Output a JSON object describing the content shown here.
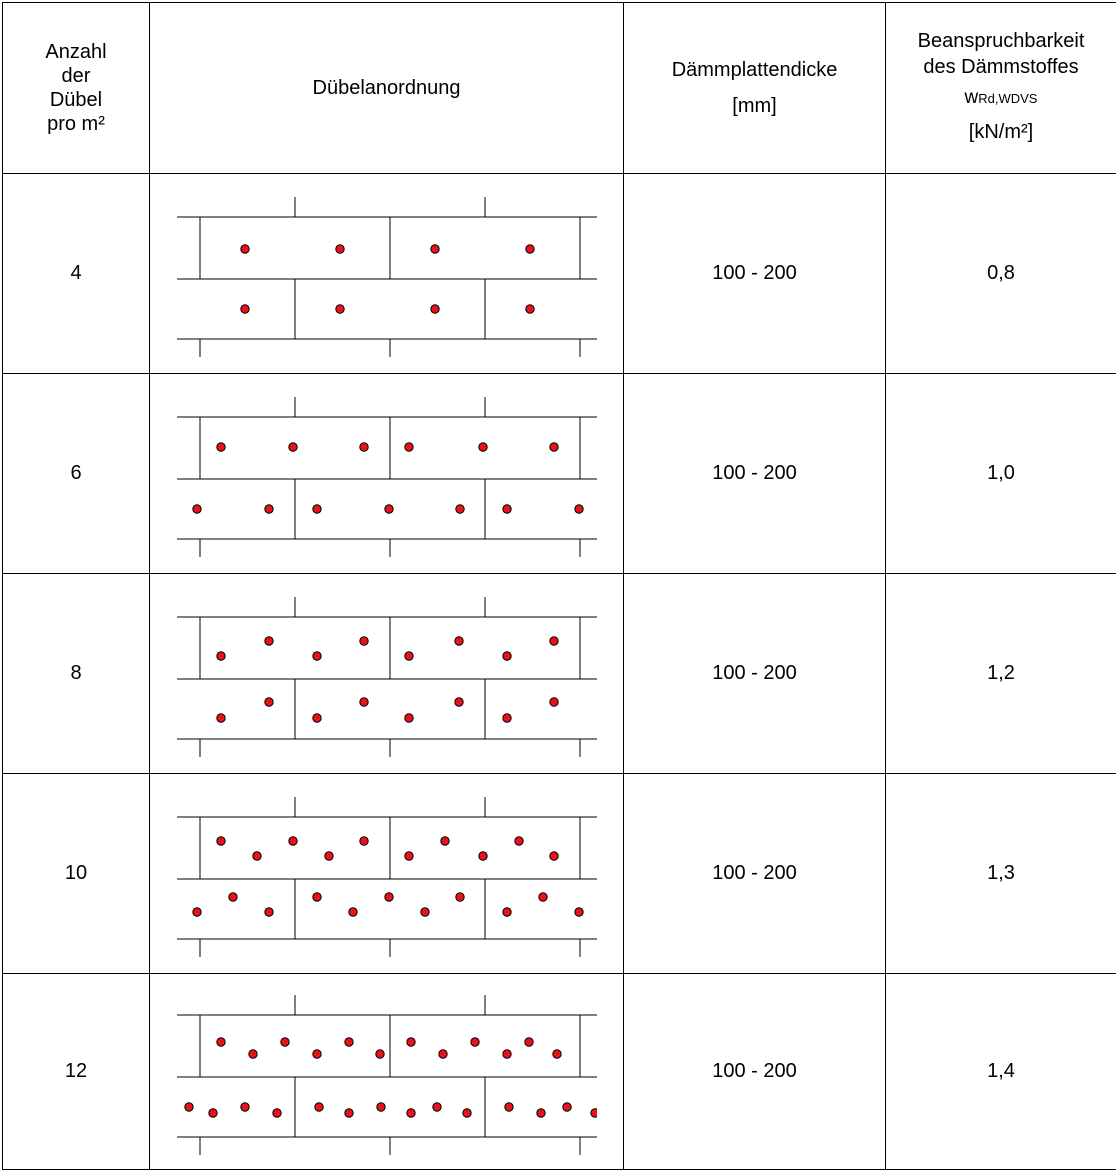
{
  "header": {
    "col1": [
      "Anzahl",
      "der",
      "Dübel",
      "pro m²"
    ],
    "col2": "Dübelanordnung",
    "col3": [
      "Dämmplattendicke",
      "[mm]"
    ],
    "col4": {
      "line1": "Beanspruchbarkeit",
      "line2": "des Dämmstoffes",
      "symbol": "w",
      "subscript": "Rd,WDVS",
      "unit": "[kN/m²]"
    }
  },
  "rows": [
    {
      "count": "4",
      "thickness": "100 - 200",
      "resistance": "0,8",
      "pattern": 4
    },
    {
      "count": "6",
      "thickness": "100 - 200",
      "resistance": "1,0",
      "pattern": 6
    },
    {
      "count": "8",
      "thickness": "100 - 200",
      "resistance": "1,2",
      "pattern": 8
    },
    {
      "count": "10",
      "thickness": "100 - 200",
      "resistance": "1,3",
      "pattern": 10
    },
    {
      "count": "12",
      "thickness": "100 - 200",
      "resistance": "1,4",
      "pattern": 12
    }
  ],
  "colors": {
    "dowel_fill": "#e8121a",
    "dowel_stroke": "#000000",
    "line": "#000000"
  }
}
